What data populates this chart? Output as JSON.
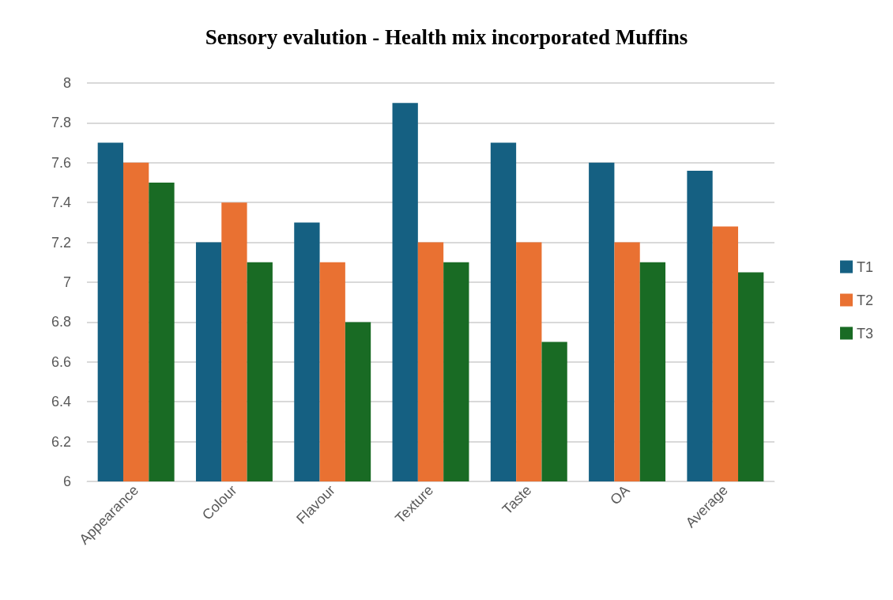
{
  "chart_data": {
    "type": "bar",
    "title": "Sensory evalution - Health mix incorporated Muffins",
    "categories": [
      "Appearance",
      "Colour",
      "Flavour",
      "Texture",
      "Taste",
      "OA",
      "Average"
    ],
    "series": [
      {
        "name": "T1",
        "color": "#156082",
        "values": [
          7.7,
          7.2,
          7.3,
          7.9,
          7.7,
          7.6,
          7.56
        ]
      },
      {
        "name": "T2",
        "color": "#e97132",
        "values": [
          7.6,
          7.4,
          7.1,
          7.2,
          7.2,
          7.2,
          7.28
        ]
      },
      {
        "name": "T3",
        "color": "#196b24",
        "values": [
          7.5,
          7.1,
          6.8,
          7.1,
          6.7,
          7.1,
          7.05
        ]
      }
    ],
    "ylim": [
      6,
      8
    ],
    "yticks": [
      6,
      6.2,
      6.4,
      6.6,
      6.8,
      7,
      7.2,
      7.4,
      7.6,
      7.8,
      8
    ],
    "grid": "y",
    "legend": "right"
  }
}
